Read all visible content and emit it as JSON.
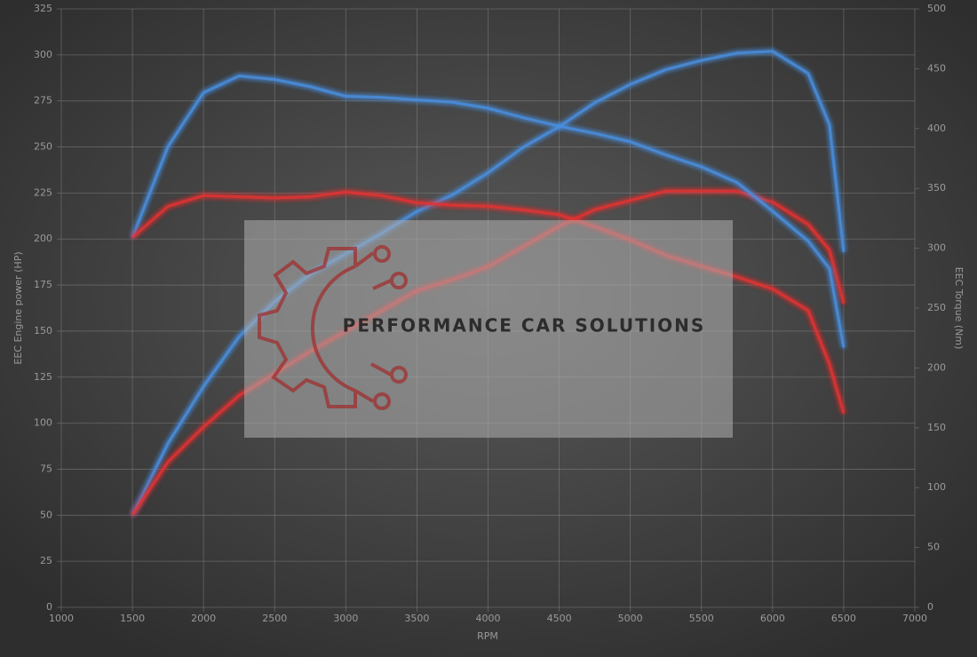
{
  "chart_data": {
    "type": "line",
    "x_label": "RPM",
    "y_label": "EEC Engine power (HP)",
    "y2_label": "EEC Torque (Nm)",
    "watermark": "PERFORMANCE CAR SOLUTIONS",
    "x": [
      1500,
      1750,
      2000,
      2250,
      2500,
      2750,
      3000,
      3250,
      3500,
      3750,
      4000,
      4250,
      4500,
      4750,
      5000,
      5250,
      5500,
      5750,
      6000,
      6250,
      6400,
      6500
    ],
    "series": [
      {
        "color": "#4a90e2",
        "axis": "y",
        "values": [
          50,
          89,
          120,
          147,
          166,
          181,
          192,
          203,
          215,
          224,
          236,
          250,
          261,
          274,
          284,
          292,
          297,
          301,
          302,
          290,
          262,
          193
        ]
      },
      {
        "color": "#e53030",
        "axis": "y",
        "values": [
          50,
          79,
          98,
          115,
          127,
          139,
          150,
          161,
          172,
          178,
          185,
          196,
          207,
          216,
          221,
          226,
          226,
          226,
          220,
          208,
          194,
          165
        ]
      },
      {
        "color": "#4a90e2",
        "axis": "y2",
        "values": [
          309,
          385,
          430,
          444,
          441,
          435,
          427,
          426,
          424,
          422,
          417,
          409,
          402,
          396,
          389,
          378,
          368,
          355,
          331,
          306,
          283,
          217
        ]
      },
      {
        "color": "#e53030",
        "axis": "y2",
        "values": [
          309,
          335,
          344,
          343,
          342,
          343,
          347,
          344,
          338,
          336,
          335,
          332,
          328,
          318,
          307,
          294,
          285,
          276,
          266,
          248,
          203,
          162
        ]
      }
    ],
    "xlim": [
      1000,
      7000
    ],
    "xticks": [
      1000,
      1500,
      2000,
      2500,
      3000,
      3500,
      4000,
      4500,
      5000,
      5500,
      6000,
      6500,
      7000
    ],
    "ylim": [
      0,
      325
    ],
    "yticks": [
      0,
      25,
      50,
      75,
      100,
      125,
      150,
      175,
      200,
      225,
      250,
      275,
      300,
      325
    ],
    "y2lim": [
      0,
      500
    ],
    "y2ticks": [
      0,
      50,
      100,
      150,
      200,
      250,
      300,
      350,
      400,
      450,
      500
    ],
    "grid": true
  }
}
